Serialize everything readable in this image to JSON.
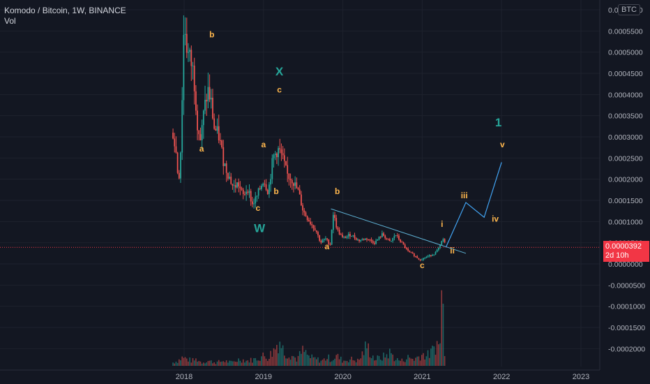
{
  "legend": {
    "symbol": "Komodo / Bitcoin, 1W, BINANCE",
    "volume": "Vol"
  },
  "currency_badge": "BTC",
  "last_price": {
    "value": "0.0000392",
    "countdown": "2d 10h"
  },
  "colors": {
    "background": "#131722",
    "up": "#26a69a",
    "down": "#ef5350",
    "wave_major": "#26a69a",
    "wave_minor": "#ffb74d",
    "projection": "#42a5f5",
    "last_price_line": "#f23645"
  },
  "chart_data": {
    "type": "candlestick",
    "title": "Komodo / Bitcoin, 1W, BINANCE",
    "y_axis": {
      "ticks": [
        "0.0006000",
        "0.0005500",
        "0.0005000",
        "0.0004500",
        "0.0004000",
        "0.0003500",
        "0.0003000",
        "0.0002500",
        "0.0002000",
        "0.0001500",
        "0.0001000",
        "0.0000500",
        "0.0000000",
        "-0.0000500",
        "-0.0001000",
        "-0.0001500",
        "-0.0002000"
      ],
      "tick_values": [
        0.0006,
        0.00055,
        0.0005,
        0.00045,
        0.0004,
        0.00035,
        0.0003,
        0.00025,
        0.0002,
        0.00015,
        0.0001,
        5e-05,
        0,
        -5e-05,
        -0.0001,
        -0.00015,
        -0.0002
      ],
      "range": [
        -0.00023,
        0.0006
      ]
    },
    "x_axis": {
      "ticks": [
        "2018",
        "2019",
        "2020",
        "2021",
        "2022",
        "2023"
      ],
      "tick_years": [
        2018,
        2019,
        2020,
        2021,
        2022,
        2023
      ],
      "range": [
        2017.2,
        2023.8
      ]
    },
    "price_path": [
      [
        2017.86,
        0.00031
      ],
      [
        2017.9,
        0.00026
      ],
      [
        2017.93,
        0.00019
      ],
      [
        2017.96,
        0.00028
      ],
      [
        2018.0,
        0.00058
      ],
      [
        2018.04,
        0.0005
      ],
      [
        2018.08,
        0.00048
      ],
      [
        2018.12,
        0.00045
      ],
      [
        2018.17,
        0.00033
      ],
      [
        2018.21,
        0.00029
      ],
      [
        2018.25,
        0.00036
      ],
      [
        2018.3,
        0.00041
      ],
      [
        2018.34,
        0.00038
      ],
      [
        2018.38,
        0.00032
      ],
      [
        2018.44,
        0.0003
      ],
      [
        2018.5,
        0.00024
      ],
      [
        2018.56,
        0.00021
      ],
      [
        2018.62,
        0.00018
      ],
      [
        2018.68,
        0.00019
      ],
      [
        2018.74,
        0.00016
      ],
      [
        2018.8,
        0.00018
      ],
      [
        2018.86,
        0.00014
      ],
      [
        2018.92,
        0.00016
      ],
      [
        2019.0,
        0.0002
      ],
      [
        2019.06,
        0.00017
      ],
      [
        2019.12,
        0.00025
      ],
      [
        2019.18,
        0.00027
      ],
      [
        2019.22,
        0.00026
      ],
      [
        2019.3,
        0.00021
      ],
      [
        2019.36,
        0.0002
      ],
      [
        2019.44,
        0.00017
      ],
      [
        2019.5,
        0.000125
      ],
      [
        2019.58,
        0.0001
      ],
      [
        2019.66,
        8e-05
      ],
      [
        2019.72,
        5e-05
      ],
      [
        2019.78,
        6e-05
      ],
      [
        2019.84,
        4.5e-05
      ],
      [
        2019.88,
        0.00012
      ],
      [
        2019.93,
        8e-05
      ],
      [
        2020.0,
        6e-05
      ],
      [
        2020.1,
        7e-05
      ],
      [
        2020.2,
        5.5e-05
      ],
      [
        2020.3,
        6e-05
      ],
      [
        2020.4,
        5e-05
      ],
      [
        2020.5,
        7e-05
      ],
      [
        2020.6,
        5e-05
      ],
      [
        2020.66,
        7e-05
      ],
      [
        2020.74,
        5e-05
      ],
      [
        2020.82,
        3e-05
      ],
      [
        2020.9,
        2e-05
      ],
      [
        2020.97,
        1e-05
      ],
      [
        2021.04,
        1.5e-05
      ],
      [
        2021.1,
        2e-05
      ],
      [
        2021.16,
        2.5e-05
      ],
      [
        2021.22,
        4e-05
      ],
      [
        2021.26,
        6e-05
      ],
      [
        2021.3,
        4e-05
      ]
    ],
    "volume_path": [
      [
        2017.86,
        2
      ],
      [
        2017.92,
        3
      ],
      [
        2017.98,
        5
      ],
      [
        2018.04,
        4
      ],
      [
        2018.1,
        3
      ],
      [
        2018.16,
        4
      ],
      [
        2018.22,
        2
      ],
      [
        2018.3,
        3
      ],
      [
        2018.4,
        2
      ],
      [
        2018.5,
        3
      ],
      [
        2018.6,
        2
      ],
      [
        2018.7,
        4
      ],
      [
        2018.8,
        3
      ],
      [
        2018.9,
        4
      ],
      [
        2019.0,
        6
      ],
      [
        2019.06,
        5
      ],
      [
        2019.14,
        10
      ],
      [
        2019.2,
        16
      ],
      [
        2019.26,
        8
      ],
      [
        2019.34,
        7
      ],
      [
        2019.42,
        4
      ],
      [
        2019.5,
        9
      ],
      [
        2019.58,
        5
      ],
      [
        2019.66,
        4
      ],
      [
        2019.74,
        3
      ],
      [
        2019.8,
        5
      ],
      [
        2019.86,
        4
      ],
      [
        2019.92,
        6
      ],
      [
        2020.0,
        3
      ],
      [
        2020.1,
        4
      ],
      [
        2020.2,
        3
      ],
      [
        2020.3,
        12
      ],
      [
        2020.4,
        4
      ],
      [
        2020.5,
        5
      ],
      [
        2020.6,
        8
      ],
      [
        2020.66,
        4
      ],
      [
        2020.74,
        3
      ],
      [
        2020.82,
        5
      ],
      [
        2020.9,
        4
      ],
      [
        2021.0,
        7
      ],
      [
        2021.06,
        6
      ],
      [
        2021.12,
        8
      ],
      [
        2021.18,
        14
      ],
      [
        2021.22,
        10
      ],
      [
        2021.25,
        48
      ],
      [
        2021.28,
        12
      ],
      [
        2021.3,
        8
      ]
    ],
    "volume_max": 50,
    "last_price": 3.92e-05,
    "trendline": [
      [
        2019.85,
        0.00013
      ],
      [
        2021.55,
        2.5e-05
      ]
    ],
    "projection_path": [
      [
        2021.3,
        4e-05
      ],
      [
        2021.55,
        0.000145
      ],
      [
        2021.78,
        0.00011
      ],
      [
        2022.0,
        0.00024
      ]
    ],
    "wave_labels": [
      {
        "text": "b",
        "x": 2018.35,
        "y": 0.000535,
        "group": "minor"
      },
      {
        "text": "a",
        "x": 2018.22,
        "y": 0.000265,
        "group": "minor"
      },
      {
        "text": "X",
        "x": 2019.2,
        "y": 0.000445,
        "group": "major"
      },
      {
        "text": "c",
        "x": 2019.2,
        "y": 0.000405,
        "group": "minor"
      },
      {
        "text": "a",
        "x": 2019.0,
        "y": 0.000275,
        "group": "minor"
      },
      {
        "text": "b",
        "x": 2019.16,
        "y": 0.000165,
        "group": "minor"
      },
      {
        "text": "c",
        "x": 2018.93,
        "y": 0.000125,
        "group": "minor"
      },
      {
        "text": "W",
        "x": 2018.95,
        "y": 7.5e-05,
        "group": "major"
      },
      {
        "text": "a",
        "x": 2019.8,
        "y": 3.5e-05,
        "group": "minor"
      },
      {
        "text": "b",
        "x": 2019.93,
        "y": 0.000165,
        "group": "minor"
      },
      {
        "text": "c",
        "x": 2021.0,
        "y": -1e-05,
        "group": "minor"
      },
      {
        "text": "i",
        "x": 2021.25,
        "y": 8.75e-05,
        "group": "minor"
      },
      {
        "text": "ii",
        "x": 2021.38,
        "y": 2.5e-05,
        "group": "minor"
      },
      {
        "text": "iii",
        "x": 2021.53,
        "y": 0.000155,
        "group": "minor"
      },
      {
        "text": "iv",
        "x": 2021.92,
        "y": 0.0001,
        "group": "minor"
      },
      {
        "text": "1",
        "x": 2021.96,
        "y": 0.000325,
        "group": "major"
      },
      {
        "text": "v",
        "x": 2022.01,
        "y": 0.000275,
        "group": "minor"
      }
    ]
  }
}
